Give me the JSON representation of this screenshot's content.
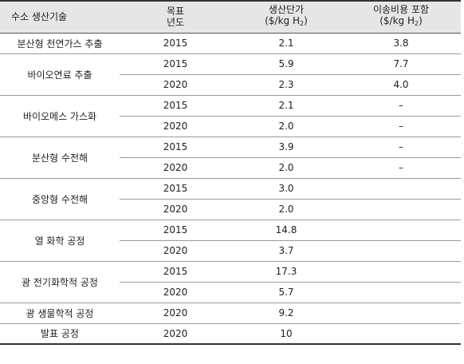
{
  "table": {
    "headers": {
      "tech": "수소 생산기술",
      "target_line1": "목표",
      "target_line2": "년도",
      "cost_line1": "생산단가",
      "cost_unit_prefix": "($/kg H",
      "cost_unit_sub": "2",
      "cost_unit_suffix": ")",
      "transport_line1": "이송비용 포함",
      "transport_unit_prefix": "($/kg H",
      "transport_unit_sub": "2",
      "transport_unit_suffix": ")"
    },
    "groups": [
      {
        "tech": "분산형 천연가스 추출",
        "rows": [
          {
            "year": "2015",
            "cost": "2.1",
            "transport": "3.8"
          }
        ]
      },
      {
        "tech": "바이오연료 추출",
        "rows": [
          {
            "year": "2015",
            "cost": "5.9",
            "transport": "7.7"
          },
          {
            "year": "2020",
            "cost": "2.3",
            "transport": "4.0"
          }
        ]
      },
      {
        "tech": "바이오메스 가스화",
        "rows": [
          {
            "year": "2015",
            "cost": "2.1",
            "transport": "–"
          },
          {
            "year": "2020",
            "cost": "2.0",
            "transport": "–"
          }
        ]
      },
      {
        "tech": "분산형 수전해",
        "rows": [
          {
            "year": "2015",
            "cost": "3.9",
            "transport": "–"
          },
          {
            "year": "2020",
            "cost": "2.0",
            "transport": "–"
          }
        ]
      },
      {
        "tech": "중앙형 수전해",
        "rows": [
          {
            "year": "2015",
            "cost": "3.0",
            "transport": ""
          },
          {
            "year": "2020",
            "cost": "2.0",
            "transport": ""
          }
        ]
      },
      {
        "tech": "열 화학 공정",
        "rows": [
          {
            "year": "2015",
            "cost": "14.8",
            "transport": ""
          },
          {
            "year": "2020",
            "cost": "3.7",
            "transport": ""
          }
        ]
      },
      {
        "tech": "광 전기화학적 공정",
        "rows": [
          {
            "year": "2015",
            "cost": "17.3",
            "transport": ""
          },
          {
            "year": "2020",
            "cost": "5.7",
            "transport": ""
          }
        ]
      },
      {
        "tech": "광 생물학적 공정",
        "rows": [
          {
            "year": "2020",
            "cost": "9.2",
            "transport": ""
          }
        ]
      },
      {
        "tech": "발표 공정",
        "rows": [
          {
            "year": "2020",
            "cost": "10",
            "transport": ""
          }
        ]
      }
    ]
  }
}
